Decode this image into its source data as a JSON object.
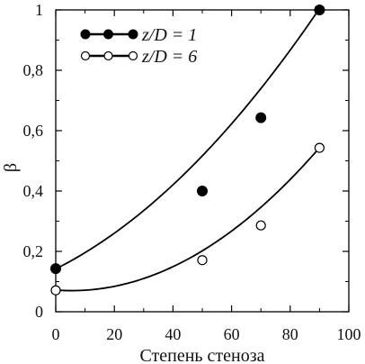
{
  "chart_data": {
    "type": "scatter",
    "xlabel": "Степень стеноза",
    "ylabel": "β",
    "xlim": [
      0,
      100
    ],
    "ylim": [
      0,
      1
    ],
    "x_ticks": [
      0,
      20,
      40,
      60,
      80,
      100
    ],
    "x_tick_labels": [
      "0",
      "20",
      "40",
      "60",
      "80",
      "100"
    ],
    "y_ticks": [
      0,
      0.2,
      0.4,
      0.6,
      0.8,
      1
    ],
    "y_tick_labels": [
      "0",
      "0,2",
      "0,4",
      "0,6",
      "0,8",
      "1"
    ],
    "grid": false,
    "legend_position": "top-left",
    "series": [
      {
        "name": "z/D = 1",
        "marker": "filled-circle",
        "color": "#000000",
        "x": [
          0,
          50,
          70,
          90
        ],
        "y": [
          0.143,
          0.4,
          0.643,
          1.0
        ],
        "trend_coefficients": [
          0.1419,
          0.00487,
          5.24e-05
        ]
      },
      {
        "name": "z/D = 6",
        "marker": "open-circle",
        "color": "#000000",
        "x": [
          0,
          50,
          70,
          90
        ],
        "y": [
          0.071,
          0.171,
          0.286,
          0.543
        ],
        "trend_coefficients": [
          0.0718,
          -0.000707,
          6.61e-05
        ]
      }
    ]
  }
}
